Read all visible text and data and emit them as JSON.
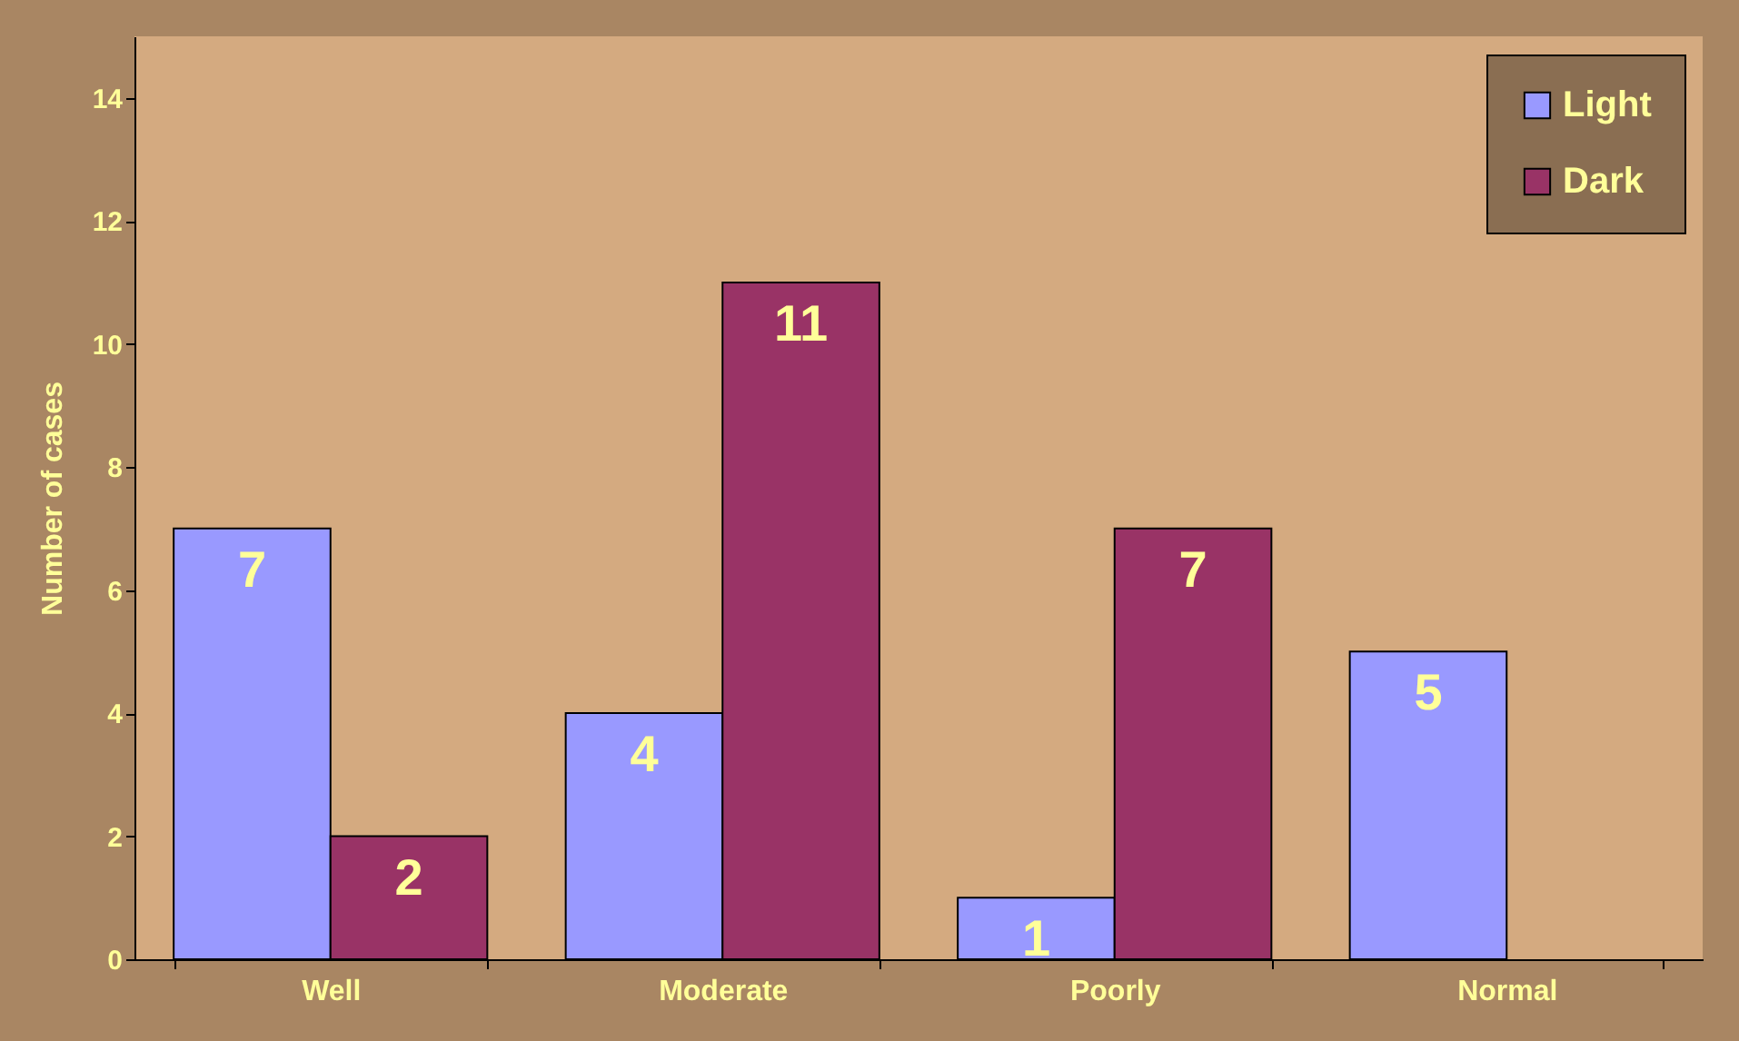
{
  "chart_data": {
    "type": "bar",
    "ylabel": "Number of cases",
    "categories": [
      "Well",
      "Moderate",
      "Poorly",
      "Normal"
    ],
    "series": [
      {
        "name": "Light",
        "color": "#9999ff",
        "values": [
          7,
          4,
          1,
          5
        ]
      },
      {
        "name": "Dark",
        "color": "#993366",
        "values": [
          2,
          11,
          7,
          null
        ]
      }
    ],
    "ylim": [
      0,
      15
    ],
    "yticks": [
      0,
      2,
      4,
      6,
      8,
      10,
      12,
      14
    ],
    "grid": false,
    "legend": "top right",
    "data_labels": true
  }
}
